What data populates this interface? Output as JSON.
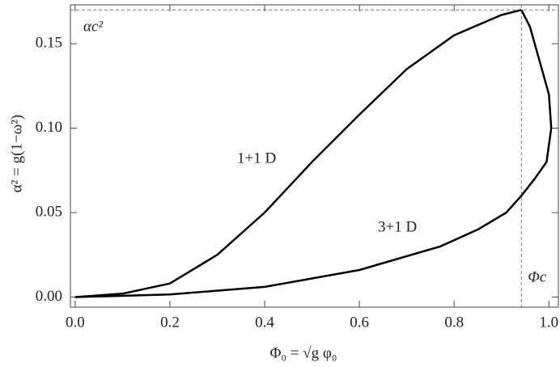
{
  "chart_data": {
    "type": "line",
    "x_label": "Φ₀ = √g φ₀",
    "y_label": "α² = g(1−ω²)",
    "xlim": [
      -0.01,
      1.02
    ],
    "ylim": [
      -0.006,
      0.173
    ],
    "xticks": [
      {
        "value": 0,
        "label": "0.0"
      },
      {
        "value": 0.2,
        "label": "0.2"
      },
      {
        "value": 0.4,
        "label": "0.4"
      },
      {
        "value": 0.6,
        "label": "0.6"
      },
      {
        "value": 0.8,
        "label": "0.8"
      },
      {
        "value": 1,
        "label": "1.0"
      }
    ],
    "yticks": [
      {
        "value": 0,
        "label": "0.00"
      },
      {
        "value": 0.05,
        "label": "0.05"
      },
      {
        "value": 0.1,
        "label": "0.10"
      },
      {
        "value": 0.15,
        "label": "0.15"
      }
    ],
    "hlines": [
      {
        "value": 0.17,
        "label": "αc²"
      }
    ],
    "vlines": [
      {
        "value": 0.942,
        "label": "Φc"
      }
    ],
    "series": [
      {
        "name": "1+1 D",
        "color": "#000000",
        "x": [
          0,
          0.1,
          0.2,
          0.3,
          0.4,
          0.5,
          0.6,
          0.7,
          0.8,
          0.9,
          0.942
        ],
        "values": [
          0,
          0.002,
          0.008,
          0.025,
          0.05,
          0.08,
          0.108,
          0.135,
          0.155,
          0.167,
          0.17
        ]
      },
      {
        "name": "3+1 D",
        "color": "#000000",
        "x": [
          0,
          0.2,
          0.4,
          0.6,
          0.771,
          0.85,
          0.91,
          0.942,
          0.97,
          0.995,
          1.005,
          1.0,
          0.98,
          0.96,
          0.942
        ],
        "values": [
          0,
          0.0015,
          0.006,
          0.016,
          0.03,
          0.04,
          0.05,
          0.06,
          0.07,
          0.08,
          0.1,
          0.12,
          0.14,
          0.16,
          0.17
        ]
      }
    ]
  }
}
